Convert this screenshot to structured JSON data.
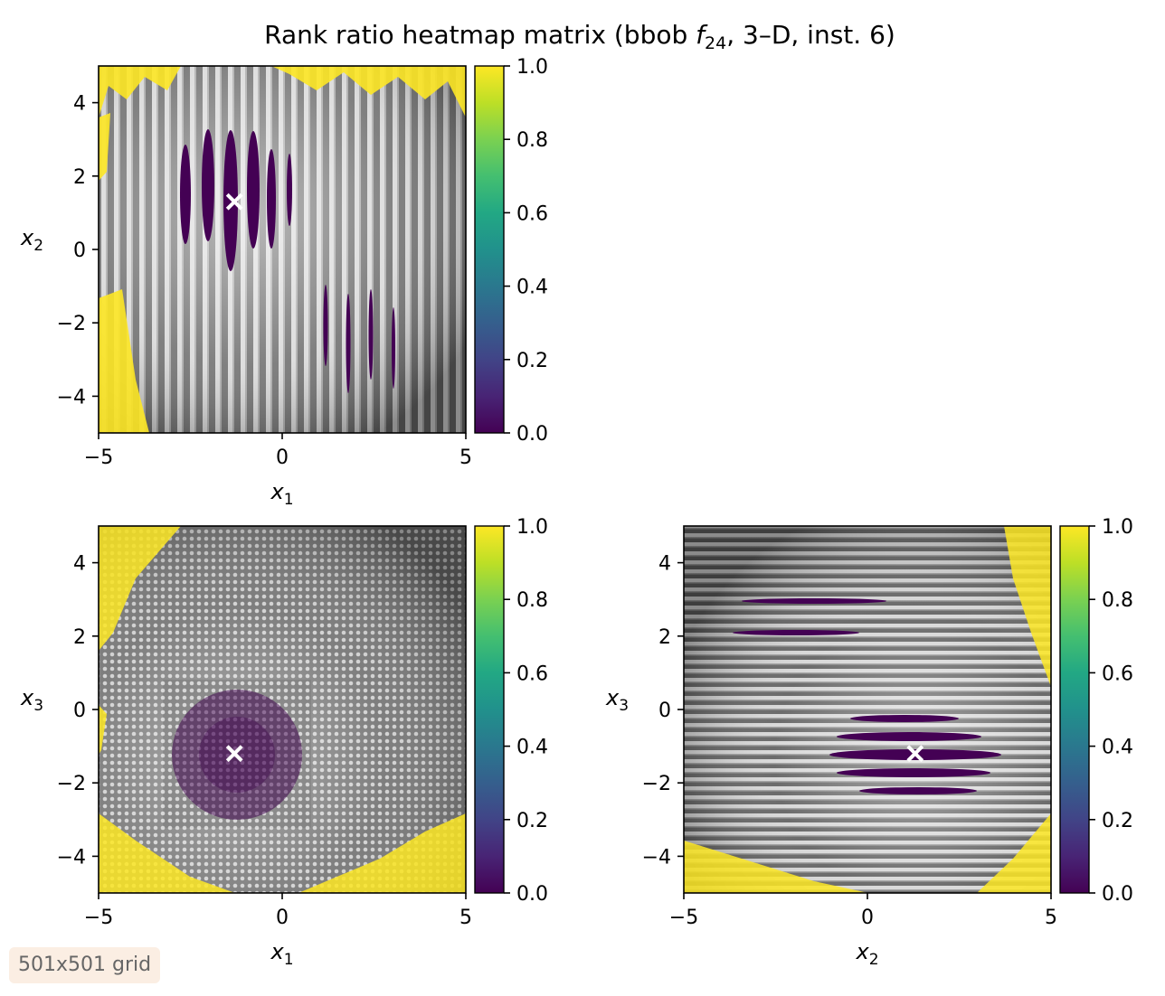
{
  "chart_data": {
    "type": "heatmap",
    "title_prefix": "Rank ratio heatmap matrix (bbob ",
    "title_fn": "f",
    "title_sub": "24",
    "title_suffix": ", 3–D, inst. 6)",
    "panels": [
      {
        "name": "x1-x2",
        "xlabel_base": "x",
        "xlabel_sub": "1",
        "ylabel_base": "x",
        "ylabel_sub": "2",
        "xlim": [
          -5,
          5
        ],
        "ylim": [
          -5,
          5
        ],
        "xticks": [
          -5,
          0,
          5
        ],
        "yticks": [
          -4,
          -2,
          0,
          2,
          4
        ],
        "xtick_labels": [
          "−5",
          "0",
          "5"
        ],
        "ytick_labels": [
          "−4",
          "−2",
          "0",
          "2",
          "4"
        ],
        "optimum": [
          -1.3,
          1.3
        ],
        "texture": "vertical-stripes"
      },
      {
        "name": "x1-x3",
        "xlabel_base": "x",
        "xlabel_sub": "1",
        "ylabel_base": "x",
        "ylabel_sub": "3",
        "xlim": [
          -5,
          5
        ],
        "ylim": [
          -5,
          5
        ],
        "xticks": [
          -5,
          0,
          5
        ],
        "yticks": [
          -4,
          -2,
          0,
          2,
          4
        ],
        "xtick_labels": [
          "−5",
          "0",
          "5"
        ],
        "ytick_labels": [
          "−4",
          "−2",
          "0",
          "2",
          "4"
        ],
        "optimum": [
          -1.3,
          -1.2
        ],
        "texture": "dots"
      },
      {
        "name": "x2-x3",
        "xlabel_base": "x",
        "xlabel_sub": "2",
        "ylabel_base": "x",
        "ylabel_sub": "3",
        "xlim": [
          -5,
          5
        ],
        "ylim": [
          -5,
          5
        ],
        "xticks": [
          -5,
          0,
          5
        ],
        "yticks": [
          -4,
          -2,
          0,
          2,
          4
        ],
        "xtick_labels": [
          "−5",
          "0",
          "5"
        ],
        "ytick_labels": [
          "−4",
          "−2",
          "0",
          "2",
          "4"
        ],
        "optimum": [
          1.3,
          -1.2
        ],
        "texture": "horizontal-stripes"
      }
    ],
    "colorbar": {
      "colormap": "viridis",
      "range": [
        0.0,
        1.0
      ],
      "ticks": [
        0.0,
        0.2,
        0.4,
        0.6,
        0.8,
        1.0
      ],
      "tick_labels": [
        "0.0",
        "0.2",
        "0.4",
        "0.6",
        "0.8",
        "1.0"
      ]
    }
  },
  "annotation": {
    "grid_label": "501x501 grid"
  },
  "colors": {
    "viridis_low": "#440154",
    "viridis_mid": "#21918c",
    "viridis_high": "#fde725",
    "marker": "#ffffff"
  }
}
